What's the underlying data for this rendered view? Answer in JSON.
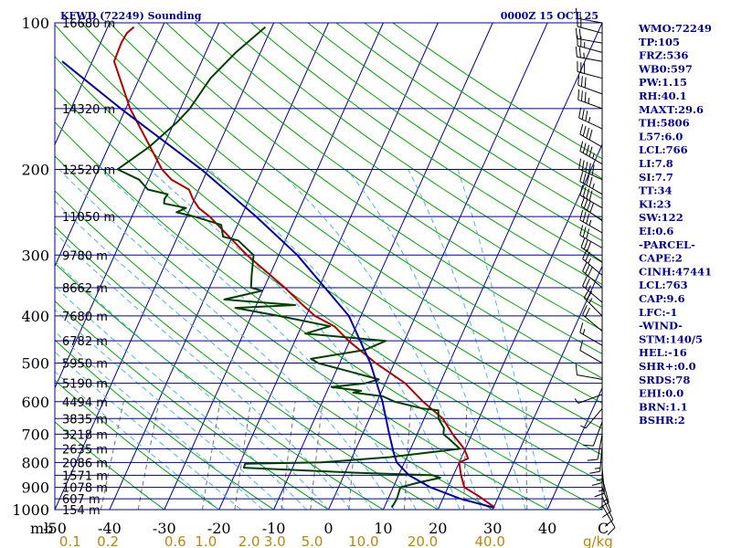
{
  "header": {
    "station": "KFWD (72249) Sounding",
    "time": "0000Z 15 OCT 25"
  },
  "colors": {
    "temperature": "#b00000",
    "dewpoint": "#004000",
    "parcel": "#0000a0",
    "isobar": "#0000a0",
    "skewed_isotherm": "#00008b",
    "dry_adiabat": "#00a000",
    "moist_adiabat": "#4fb4d8",
    "mixing_ratio": "#707070",
    "mixing_label": "#b8860b",
    "wind_barb": "#000000",
    "indices_text": "#00008b"
  },
  "chart_data": {
    "type": "skew-t log-p",
    "xlabel": "",
    "ylabel": "mb",
    "x_units_label": "C",
    "mixing_ratio_units": "g/kg",
    "xlim": [
      -50,
      50
    ],
    "ylim": [
      1000,
      100
    ],
    "y_scale": "log",
    "skew_degC_per_decade": 40,
    "pressure_ticks": [
      "100",
      "200",
      "300",
      "400",
      "500",
      "600",
      "700",
      "800",
      "900",
      "1000"
    ],
    "temperature_ticks": [
      "-50",
      "-40",
      "-30",
      "-20",
      "-10",
      "0",
      "10",
      "20",
      "30",
      "40"
    ],
    "mixing_ratio_ticks": [
      {
        "label": "0.1",
        "t": -47.2
      },
      {
        "label": "0.2",
        "t": -40.3
      },
      {
        "label": "0.6",
        "t": -28.0
      },
      {
        "label": "1.0",
        "t": -22.4
      },
      {
        "label": "2.0",
        "t": -14.5
      },
      {
        "label": "3.0",
        "t": -9.8
      },
      {
        "label": "5.0",
        "t": -3.0
      },
      {
        "label": "10.0",
        "t": 6.4
      },
      {
        "label": "20.0",
        "t": 17.2
      },
      {
        "label": "40.0",
        "t": 29.5
      }
    ],
    "heights": [
      {
        "p": 100,
        "label": "16680 m"
      },
      {
        "p": 150,
        "label": "14320 m"
      },
      {
        "p": 200,
        "label": "12520 m"
      },
      {
        "p": 250,
        "label": "11050 m"
      },
      {
        "p": 300,
        "label": "9780 m"
      },
      {
        "p": 350,
        "label": "8662 m"
      },
      {
        "p": 400,
        "label": "7680 m"
      },
      {
        "p": 450,
        "label": "6782 m"
      },
      {
        "p": 500,
        "label": "5950 m"
      },
      {
        "p": 550,
        "label": "5190 m"
      },
      {
        "p": 600,
        "label": "4494 m"
      },
      {
        "p": 650,
        "label": "3835 m"
      },
      {
        "p": 700,
        "label": "3218 m"
      },
      {
        "p": 750,
        "label": "2635 m"
      },
      {
        "p": 800,
        "label": "2086 m"
      },
      {
        "p": 850,
        "label": "1571 m"
      },
      {
        "p": 900,
        "label": "1078 m"
      },
      {
        "p": 950,
        "label": "607 m"
      },
      {
        "p": 1000,
        "label": "154 m"
      }
    ],
    "series": [
      {
        "key": "temperature",
        "points": [
          [
            990,
            30.2
          ],
          [
            940,
            26.5
          ],
          [
            900,
            23.0
          ],
          [
            850,
            21.4
          ],
          [
            800,
            20.0
          ],
          [
            785,
            21.3
          ],
          [
            750,
            19.8
          ],
          [
            700,
            16.5
          ],
          [
            650,
            13.4
          ],
          [
            600,
            8.4
          ],
          [
            550,
            3.6
          ],
          [
            500,
            -3.4
          ],
          [
            450,
            -10.2
          ],
          [
            420,
            -14.0
          ],
          [
            400,
            -18.4
          ],
          [
            380,
            -21.5
          ],
          [
            350,
            -26.2
          ],
          [
            300,
            -35.8
          ],
          [
            250,
            -45.8
          ],
          [
            240,
            -48.5
          ],
          [
            230,
            -50.3
          ],
          [
            220,
            -51.8
          ],
          [
            210,
            -55.8
          ],
          [
            200,
            -58.4
          ],
          [
            150,
            -69.2
          ],
          [
            120,
            -76.0
          ],
          [
            110,
            -76.2
          ],
          [
            105,
            -76.0
          ],
          [
            102,
            -75.2
          ]
        ]
      },
      {
        "key": "dewpoint",
        "points": [
          [
            990,
            11.4
          ],
          [
            950,
            11.6
          ],
          [
            900,
            11.3
          ],
          [
            880,
            14.2
          ],
          [
            860,
            17.8
          ],
          [
            850,
            16.3
          ],
          [
            840,
            2.0
          ],
          [
            820,
            -18.9
          ],
          [
            805,
            -19.0
          ],
          [
            800,
            -5.2
          ],
          [
            780,
            6.9
          ],
          [
            750,
            19.0
          ],
          [
            720,
            16.6
          ],
          [
            700,
            14.8
          ],
          [
            680,
            14.4
          ],
          [
            650,
            12.6
          ],
          [
            625,
            11.9
          ],
          [
            620,
            8.9
          ],
          [
            600,
            3.2
          ],
          [
            585,
            0.6
          ],
          [
            575,
            -5.1
          ],
          [
            570,
            -3.8
          ],
          [
            560,
            -9.5
          ],
          [
            550,
            -3.6
          ],
          [
            540,
            -1.5
          ],
          [
            500,
            -13.9
          ],
          [
            490,
            -15.6
          ],
          [
            470,
            -6.5
          ],
          [
            450,
            -3.4
          ],
          [
            435,
            -18.7
          ],
          [
            420,
            -14.8
          ],
          [
            400,
            -25.0
          ],
          [
            385,
            -33.6
          ],
          [
            380,
            -22.9
          ],
          [
            370,
            -36.3
          ],
          [
            355,
            -30.1
          ],
          [
            350,
            -32.4
          ],
          [
            330,
            -33.3
          ],
          [
            300,
            -34.6
          ],
          [
            280,
            -38.6
          ],
          [
            275,
            -41.7
          ],
          [
            260,
            -43.0
          ],
          [
            250,
            -48.6
          ],
          [
            245,
            -52.2
          ],
          [
            240,
            -50.8
          ],
          [
            235,
            -55.2
          ],
          [
            230,
            -55.5
          ],
          [
            225,
            -55.3
          ],
          [
            220,
            -59.3
          ],
          [
            210,
            -61.7
          ],
          [
            200,
            -66.5
          ],
          [
            180,
            -62.6
          ],
          [
            160,
            -59.5
          ],
          [
            150,
            -58.3
          ],
          [
            130,
            -57.0
          ],
          [
            115,
            -54.5
          ],
          [
            102,
            -51.2
          ]
        ]
      },
      {
        "key": "parcel",
        "points": [
          [
            990,
            30.0
          ],
          [
            950,
            23.2
          ],
          [
            900,
            16.8
          ],
          [
            850,
            11.9
          ],
          [
            800,
            8.6
          ],
          [
            766,
            7.3
          ],
          [
            700,
            4.9
          ],
          [
            600,
            1.0
          ],
          [
            500,
            -4.4
          ],
          [
            400,
            -12.2
          ],
          [
            300,
            -26.6
          ],
          [
            250,
            -37.3
          ],
          [
            200,
            -51.2
          ],
          [
            150,
            -70.9
          ],
          [
            120,
            -85.5
          ]
        ]
      }
    ],
    "wind_barbs": [
      {
        "p": 100,
        "dir": 280,
        "spd": 15
      },
      {
        "p": 105,
        "dir": 285,
        "spd": 20
      },
      {
        "p": 110,
        "dir": 280,
        "spd": 20
      },
      {
        "p": 115,
        "dir": 285,
        "spd": 25
      },
      {
        "p": 120,
        "dir": 280,
        "spd": 25
      },
      {
        "p": 130,
        "dir": 285,
        "spd": 30
      },
      {
        "p": 140,
        "dir": 290,
        "spd": 30
      },
      {
        "p": 150,
        "dir": 290,
        "spd": 35
      },
      {
        "p": 165,
        "dir": 295,
        "spd": 35
      },
      {
        "p": 180,
        "dir": 300,
        "spd": 40
      },
      {
        "p": 195,
        "dir": 300,
        "spd": 45
      },
      {
        "p": 210,
        "dir": 295,
        "spd": 50
      },
      {
        "p": 225,
        "dir": 300,
        "spd": 45
      },
      {
        "p": 240,
        "dir": 300,
        "spd": 40
      },
      {
        "p": 255,
        "dir": 305,
        "spd": 40
      },
      {
        "p": 270,
        "dir": 300,
        "spd": 35
      },
      {
        "p": 290,
        "dir": 300,
        "spd": 30
      },
      {
        "p": 310,
        "dir": 305,
        "spd": 30
      },
      {
        "p": 330,
        "dir": 310,
        "spd": 25
      },
      {
        "p": 350,
        "dir": 310,
        "spd": 30
      },
      {
        "p": 375,
        "dir": 310,
        "spd": 25
      },
      {
        "p": 400,
        "dir": 315,
        "spd": 25
      },
      {
        "p": 430,
        "dir": 310,
        "spd": 20
      },
      {
        "p": 460,
        "dir": 300,
        "spd": 15
      },
      {
        "p": 500,
        "dir": 300,
        "spd": 10
      },
      {
        "p": 540,
        "dir": 280,
        "spd": 10
      },
      {
        "p": 580,
        "dir": 250,
        "spd": 5
      },
      {
        "p": 620,
        "dir": 220,
        "spd": 5
      },
      {
        "p": 660,
        "dir": 200,
        "spd": 10
      },
      {
        "p": 700,
        "dir": 190,
        "spd": 10
      },
      {
        "p": 740,
        "dir": 185,
        "spd": 15
      },
      {
        "p": 780,
        "dir": 180,
        "spd": 15
      },
      {
        "p": 820,
        "dir": 175,
        "spd": 15
      },
      {
        "p": 860,
        "dir": 165,
        "spd": 15
      },
      {
        "p": 900,
        "dir": 160,
        "spd": 10
      },
      {
        "p": 940,
        "dir": 155,
        "spd": 10
      },
      {
        "p": 980,
        "dir": 150,
        "spd": 10
      }
    ]
  },
  "indices": [
    "WMO:72249",
    "TP:105",
    "FRZ:536",
    "WB0:597",
    "PW:1.15",
    "RH:40.1",
    "MAXT:29.6",
    "TH:5806",
    "L57:6.0",
    "LCL:766",
    "LI:7.8",
    "SI:7.7",
    "TT:34",
    "KI:23",
    "SW:122",
    "EI:0.6",
    "-PARCEL-",
    "CAPE:2",
    "CINH:47441",
    "LCL:763",
    "CAP:9.6",
    "LFC:-1",
    "-WIND-",
    "STM:140/5",
    "HEL:-16",
    "SHR+:0.0",
    "SRDS:78",
    "EHI:0.0",
    "BRN:1.1",
    "BSHR:2"
  ]
}
